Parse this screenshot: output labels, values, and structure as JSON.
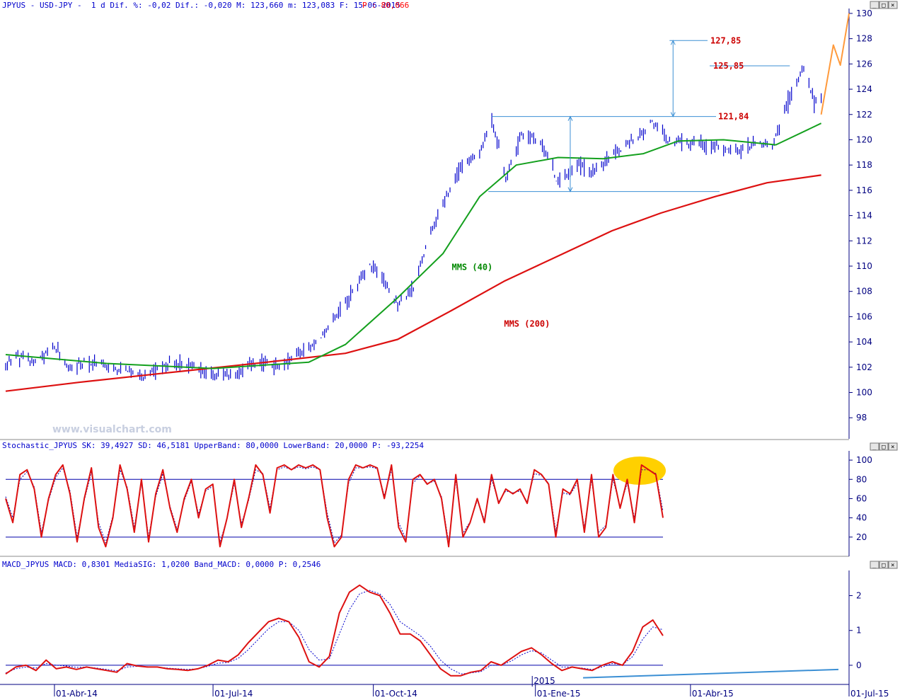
{
  "header": {
    "symbol_line": "JPYUS - USD-JPY -  1 d Dif. %: -0,02 Dif.: -0,020 M: 123,660 m: 123,083 F: 15-06-2015",
    "p_label": "P : 80,066"
  },
  "watermark": "www.visualchart.com",
  "colors": {
    "axis": "#000080",
    "price_bars": "#0000cc",
    "ma40": "#14a01e",
    "ma200": "#dd1111",
    "guide_lines": "#3b8fd4",
    "projection": "#ff9a3c",
    "stoch_main": "#dd1111",
    "stoch_signal": "#0000aa",
    "macd_main": "#dd1111",
    "macd_signal": "#0000cc",
    "highlight": "#ffd000"
  },
  "panels": {
    "stochastic_title": "Stochastic_JPYUS SK: 39,4927 SD: 46,5181 UpperBand: 80,0000 LowerBand: 20,0000 P: -93,2254",
    "macd_title": "MACD_JPYUS MACD: 0,8301 MediaSIG: 1,0200 Band_MACD: 0,0000 P: 0,2546"
  },
  "chart_data": [
    {
      "type": "candlestick",
      "title": "USD-JPY daily",
      "ylim": [
        96.5,
        130.5
      ],
      "y_ticks": [
        "98",
        "100",
        "102",
        "104",
        "106",
        "108",
        "110",
        "112",
        "114",
        "116",
        "118",
        "120",
        "122",
        "124",
        "126",
        "128",
        "130"
      ],
      "x_ticks": [
        "01-Abr-14",
        "01-Jul-14",
        "01-Oct-14",
        "2015",
        "01-Ene-15",
        "01-Abr-15",
        "01-Jul-15"
      ],
      "x_range": [
        "2014-03-04",
        "2015-07-01"
      ],
      "last_close": 123.31,
      "price_path": [
        [
          "2014-03-04",
          102.0
        ],
        [
          "2014-03-10",
          103.0
        ],
        [
          "2014-03-20",
          102.3
        ],
        [
          "2014-04-01",
          103.5
        ],
        [
          "2014-04-10",
          101.8
        ],
        [
          "2014-04-18",
          102.5
        ],
        [
          "2014-05-05",
          101.9
        ],
        [
          "2014-05-15",
          101.6
        ],
        [
          "2014-05-22",
          101.2
        ],
        [
          "2014-06-05",
          102.4
        ],
        [
          "2014-06-20",
          102.0
        ],
        [
          "2014-07-01",
          101.4
        ],
        [
          "2014-07-15",
          101.5
        ],
        [
          "2014-07-28",
          102.5
        ],
        [
          "2014-08-08",
          102.0
        ],
        [
          "2014-08-20",
          103.2
        ],
        [
          "2014-09-01",
          104.3
        ],
        [
          "2014-09-15",
          107.0
        ],
        [
          "2014-09-25",
          109.5
        ],
        [
          "2014-10-01",
          110.0
        ],
        [
          "2014-10-15",
          107.0
        ],
        [
          "2014-10-23",
          108.0
        ],
        [
          "2014-10-31",
          111.5
        ],
        [
          "2014-11-10",
          115.0
        ],
        [
          "2014-11-20",
          117.8
        ],
        [
          "2014-12-01",
          119.0
        ],
        [
          "2014-12-08",
          121.5
        ],
        [
          "2014-12-16",
          117.0
        ],
        [
          "2014-12-25",
          120.2
        ],
        [
          "2015-01-05",
          120.0
        ],
        [
          "2015-01-15",
          116.6
        ],
        [
          "2015-01-25",
          118.0
        ],
        [
          "2015-02-05",
          117.5
        ],
        [
          "2015-02-18",
          119.2
        ],
        [
          "2015-03-05",
          120.5
        ],
        [
          "2015-03-10",
          121.5
        ],
        [
          "2015-03-20",
          119.8
        ],
        [
          "2015-04-01",
          119.8
        ],
        [
          "2015-04-15",
          119.3
        ],
        [
          "2015-04-28",
          119.0
        ],
        [
          "2015-05-08",
          119.8
        ],
        [
          "2015-05-18",
          119.5
        ],
        [
          "2015-05-26",
          122.8
        ],
        [
          "2015-06-01",
          124.5
        ],
        [
          "2015-06-05",
          125.6
        ],
        [
          "2015-06-11",
          123.0
        ],
        [
          "2015-06-15",
          123.3
        ]
      ],
      "series": [
        {
          "name": "MMS (40)",
          "path": [
            [
              "2014-03-04",
              103.0
            ],
            [
              "2014-05-01",
              102.3
            ],
            [
              "2014-07-01",
              101.9
            ],
            [
              "2014-08-25",
              102.4
            ],
            [
              "2014-09-15",
              103.8
            ],
            [
              "2014-10-15",
              107.5
            ],
            [
              "2014-11-10",
              111.0
            ],
            [
              "2014-12-01",
              115.5
            ],
            [
              "2014-12-22",
              118.0
            ],
            [
              "2015-01-15",
              118.6
            ],
            [
              "2015-02-10",
              118.5
            ],
            [
              "2015-03-05",
              118.9
            ],
            [
              "2015-03-25",
              119.9
            ],
            [
              "2015-04-20",
              120.0
            ],
            [
              "2015-05-20",
              119.6
            ],
            [
              "2015-06-15",
              121.3
            ]
          ]
        },
        {
          "name": "MMS (200)",
          "path": [
            [
              "2014-03-04",
              100.1
            ],
            [
              "2014-04-15",
              100.8
            ],
            [
              "2014-06-01",
              101.5
            ],
            [
              "2014-08-01",
              102.4
            ],
            [
              "2014-09-15",
              103.1
            ],
            [
              "2014-10-15",
              104.2
            ],
            [
              "2014-11-15",
              106.5
            ],
            [
              "2014-12-15",
              108.8
            ],
            [
              "2015-01-15",
              110.8
            ],
            [
              "2015-02-15",
              112.8
            ],
            [
              "2015-03-15",
              114.2
            ],
            [
              "2015-04-15",
              115.5
            ],
            [
              "2015-05-15",
              116.6
            ],
            [
              "2015-06-15",
              117.2
            ]
          ]
        }
      ],
      "horizontal_levels": [
        {
          "label": "127,85",
          "value": 127.85
        },
        {
          "label": "125,85",
          "value": 125.85
        },
        {
          "label": "121,84",
          "value": 121.84
        },
        {
          "value": 115.9
        }
      ],
      "projection": {
        "path": [
          [
            "2015-06-15",
            122.0
          ],
          [
            "2015-06-22",
            127.5
          ],
          [
            "2015-06-26",
            125.9
          ],
          [
            "2015-07-01",
            130.0
          ]
        ]
      },
      "annotations": [
        "MMS (40)",
        "MMS (200)"
      ]
    },
    {
      "type": "line",
      "title": "Stochastic_JPYUS",
      "ylim": [
        0,
        103
      ],
      "y_ticks": [
        "20",
        "40",
        "60",
        "80",
        "100"
      ],
      "bands": [
        20,
        80
      ],
      "highlighted_zone": "overbought near 100 around early June 2015",
      "series": [
        {
          "name": "SK",
          "values": [
            60,
            35,
            85,
            90,
            70,
            20,
            60,
            85,
            95,
            65,
            15,
            60,
            92,
            30,
            10,
            40,
            95,
            70,
            25,
            80,
            15,
            65,
            90,
            50,
            25,
            60,
            80,
            40,
            70,
            75,
            10,
            40,
            80,
            30,
            60,
            95,
            85,
            45,
            92,
            95,
            90,
            95,
            92,
            95,
            90,
            40,
            10,
            20,
            80,
            95,
            92,
            95,
            92,
            60,
            95,
            30,
            15,
            80,
            85,
            75,
            80,
            60,
            10,
            85,
            20,
            35,
            60,
            35,
            85,
            55,
            70,
            65,
            70,
            55,
            90,
            85,
            75,
            20,
            70,
            65,
            80,
            25,
            85,
            20,
            30,
            85,
            50,
            80,
            35,
            95,
            90,
            85,
            40
          ]
        },
        {
          "name": "SD",
          "values": [
            62,
            40,
            80,
            88,
            72,
            25,
            58,
            82,
            92,
            68,
            20,
            58,
            88,
            35,
            14,
            42,
            90,
            72,
            30,
            76,
            20,
            62,
            86,
            52,
            28,
            58,
            78,
            44,
            68,
            73,
            14,
            40,
            76,
            34,
            58,
            90,
            86,
            50,
            90,
            93,
            90,
            93,
            91,
            93,
            90,
            45,
            14,
            22,
            76,
            92,
            92,
            93,
            91,
            63,
            90,
            35,
            18,
            76,
            84,
            76,
            78,
            62,
            14,
            80,
            24,
            36,
            58,
            38,
            80,
            57,
            68,
            66,
            68,
            57,
            86,
            84,
            76,
            26,
            66,
            64,
            76,
            30,
            80,
            25,
            32,
            80,
            52,
            76,
            40,
            90,
            90,
            86,
            47
          ]
        }
      ]
    },
    {
      "type": "line",
      "title": "MACD_JPYUS",
      "ylim": [
        -0.55,
        2.6
      ],
      "y_ticks": [
        "0",
        "1",
        "2"
      ],
      "bands": [
        0
      ],
      "trendline": {
        "from": [
          "2015-01-05",
          -0.36
        ],
        "to": [
          "2015-07-01",
          -0.12
        ]
      },
      "series": [
        {
          "name": "MACD",
          "values": [
            -0.25,
            -0.05,
            0.0,
            -0.15,
            0.15,
            -0.1,
            -0.05,
            -0.12,
            -0.05,
            -0.1,
            -0.15,
            -0.2,
            0.05,
            -0.02,
            -0.05,
            -0.05,
            -0.1,
            -0.12,
            -0.15,
            -0.1,
            0.0,
            0.15,
            0.1,
            0.3,
            0.65,
            0.95,
            1.25,
            1.35,
            1.25,
            0.8,
            0.1,
            -0.05,
            0.25,
            1.5,
            2.1,
            2.3,
            2.1,
            2.0,
            1.5,
            0.9,
            0.9,
            0.7,
            0.3,
            -0.1,
            -0.3,
            -0.3,
            -0.2,
            -0.15,
            0.1,
            0.0,
            0.2,
            0.4,
            0.5,
            0.3,
            0.05,
            -0.15,
            -0.05,
            -0.1,
            -0.15,
            0.0,
            0.1,
            0.0,
            0.4,
            1.1,
            1.3,
            0.85
          ]
        },
        {
          "name": "SIG",
          "values": [
            -0.22,
            -0.1,
            -0.05,
            -0.08,
            0.05,
            0.0,
            -0.02,
            -0.06,
            -0.05,
            -0.08,
            -0.12,
            -0.16,
            -0.05,
            -0.03,
            -0.04,
            -0.05,
            -0.08,
            -0.1,
            -0.12,
            -0.1,
            -0.03,
            0.06,
            0.08,
            0.2,
            0.45,
            0.75,
            1.05,
            1.25,
            1.25,
            1.0,
            0.45,
            0.15,
            0.18,
            0.9,
            1.6,
            2.05,
            2.15,
            2.05,
            1.75,
            1.25,
            1.05,
            0.85,
            0.55,
            0.15,
            -0.1,
            -0.25,
            -0.22,
            -0.18,
            0.0,
            0.0,
            0.12,
            0.3,
            0.42,
            0.35,
            0.15,
            -0.05,
            -0.05,
            -0.08,
            -0.12,
            -0.05,
            0.05,
            0.02,
            0.25,
            0.75,
            1.1,
            1.02
          ]
        }
      ]
    }
  ]
}
